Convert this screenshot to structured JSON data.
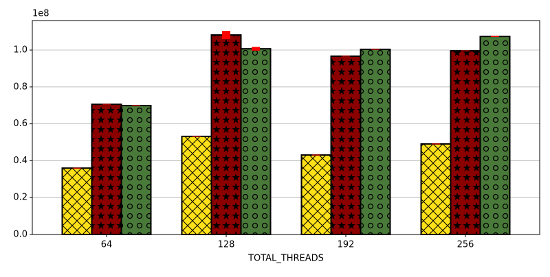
{
  "chart_data": {
    "type": "bar",
    "x_label": "TOTAL_THREADS",
    "y_offset_label": "1e8",
    "categories": [
      "64",
      "128",
      "192",
      "256"
    ],
    "series": [
      {
        "color": "#ffe119",
        "hatch": "x",
        "values": [
          0.36,
          0.532,
          0.431,
          0.491
        ],
        "errors": [
          0.002,
          0.002,
          0.002,
          0.002
        ]
      },
      {
        "color": "#8b0000",
        "hatch": "*",
        "values": [
          0.706,
          1.082,
          0.967,
          0.996
        ],
        "errors": [
          0.002,
          0.022,
          0.002,
          0.002
        ]
      },
      {
        "color": "#4a7a3a",
        "hatch": "o",
        "values": [
          0.699,
          1.007,
          1.004,
          1.074
        ],
        "errors": [
          0.002,
          0.01,
          0.002,
          0.003
        ]
      }
    ],
    "error_color": "#ff0000",
    "ylim": [
      0,
      1.16
    ],
    "yticks": [
      {
        "value": 0,
        "label": "0.0"
      },
      {
        "value": 0.2,
        "label": "0.2"
      },
      {
        "value": 0.4,
        "label": "0.4"
      },
      {
        "value": 0.6,
        "label": "0.6"
      },
      {
        "value": 0.8,
        "label": "0.8"
      },
      {
        "value": 1.0,
        "label": "1.0"
      }
    ],
    "grid": true
  }
}
